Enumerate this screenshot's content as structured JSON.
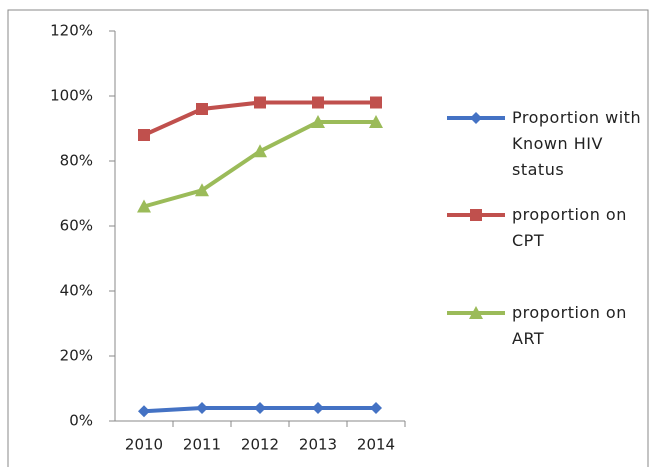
{
  "chart_data": {
    "type": "line",
    "categories": [
      "2010",
      "2011",
      "2012",
      "2013",
      "2014"
    ],
    "series": [
      {
        "name": "Proportion with Known HIV status",
        "color": "#4472c4",
        "marker": "diamond",
        "values": [
          3,
          4,
          4,
          4,
          4
        ]
      },
      {
        "name": "proportion on CPT",
        "color": "#c0504d",
        "marker": "square",
        "values": [
          88,
          96,
          98,
          98,
          98
        ]
      },
      {
        "name": "proportion on ART",
        "color": "#9bbb59",
        "marker": "triangle",
        "values": [
          66,
          71,
          83,
          92,
          92
        ]
      }
    ],
    "ylim": [
      0,
      120
    ],
    "yticks": [
      {
        "value": 0,
        "label": "0%"
      },
      {
        "value": 20,
        "label": "20%"
      },
      {
        "value": 40,
        "label": "40%"
      },
      {
        "value": 60,
        "label": "60%"
      },
      {
        "value": 80,
        "label": "80%"
      },
      {
        "value": 100,
        "label": "100%"
      },
      {
        "value": 120,
        "label": "120%"
      }
    ],
    "grid": false,
    "legend": "right"
  }
}
